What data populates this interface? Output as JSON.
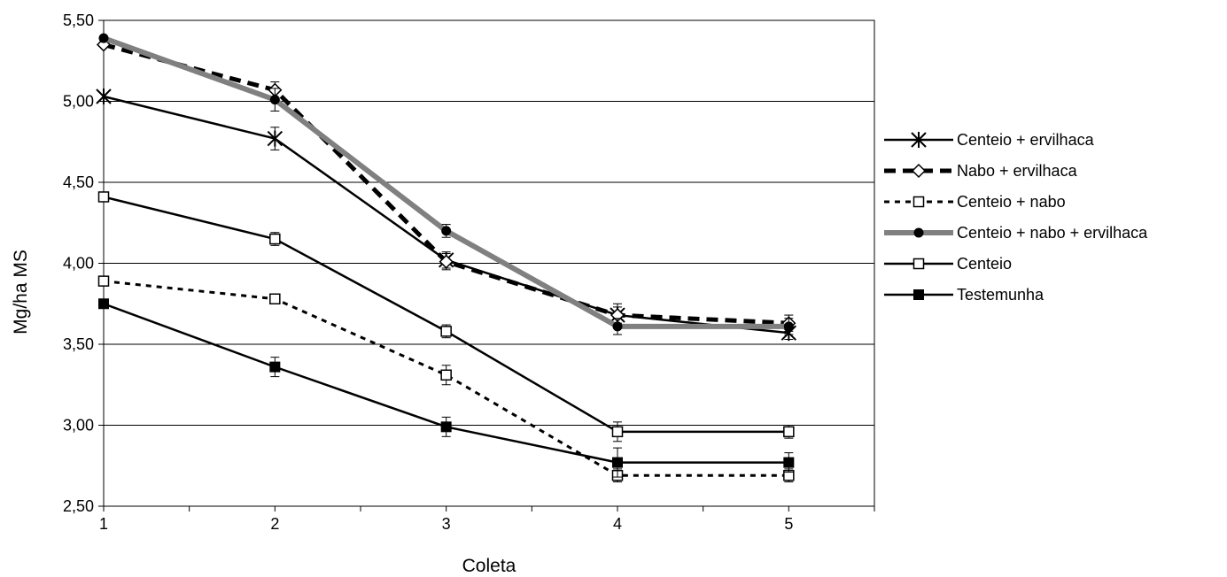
{
  "chart_data": {
    "type": "line",
    "title": "",
    "xlabel": "Coleta",
    "ylabel": "Mg/ha MS",
    "x": [
      1,
      2,
      3,
      4,
      5
    ],
    "x_tick_labels": [
      "1",
      "2",
      "3",
      "4",
      "5"
    ],
    "xlim": [
      1,
      5.5
    ],
    "ylim": [
      2.5,
      5.5
    ],
    "y_tick_labels": [
      "2,50",
      "3,00",
      "3,50",
      "4,00",
      "4,50",
      "5,00",
      "5,50"
    ],
    "grid": "horizontal",
    "legend_position": "right",
    "series": [
      {
        "name": "Centeio + ervilhaca",
        "values": [
          5.03,
          4.77,
          4.02,
          3.68,
          3.57
        ],
        "errors": [
          0,
          0.07,
          0.05,
          0.07,
          0.04
        ],
        "marker": "asterisk",
        "line": "solid",
        "color": "#000000"
      },
      {
        "name": "Nabo + ervilhaca",
        "values": [
          5.35,
          5.07,
          4.01,
          3.68,
          3.63
        ],
        "errors": [
          0,
          0.05,
          0.05,
          0.05,
          0.05
        ],
        "marker": "diamond",
        "line": "dashed-bold",
        "color": "#000000"
      },
      {
        "name": "Centeio + nabo",
        "values": [
          3.89,
          3.78,
          3.31,
          2.69,
          2.69
        ],
        "errors": [
          0,
          0.02,
          0.06,
          0.04,
          0.04
        ],
        "marker": "square-open",
        "line": "dotted",
        "color": "#000000"
      },
      {
        "name": "Centeio + nabo + ervilhaca",
        "values": [
          5.39,
          5.01,
          4.2,
          3.61,
          3.61
        ],
        "errors": [
          0,
          0.07,
          0.04,
          0.05,
          0.05
        ],
        "marker": "circle",
        "line": "gray-thick",
        "color": "#808080"
      },
      {
        "name": "Centeio",
        "values": [
          4.41,
          4.15,
          3.58,
          2.96,
          2.96
        ],
        "errors": [
          0,
          0.04,
          0.04,
          0.06,
          0.04
        ],
        "marker": "square-open",
        "line": "solid",
        "color": "#000000"
      },
      {
        "name": "Testemunha",
        "values": [
          3.75,
          3.36,
          2.99,
          2.77,
          2.77
        ],
        "errors": [
          0,
          0.06,
          0.06,
          0.09,
          0.06
        ],
        "marker": "square-filled",
        "line": "solid",
        "color": "#000000"
      }
    ]
  }
}
